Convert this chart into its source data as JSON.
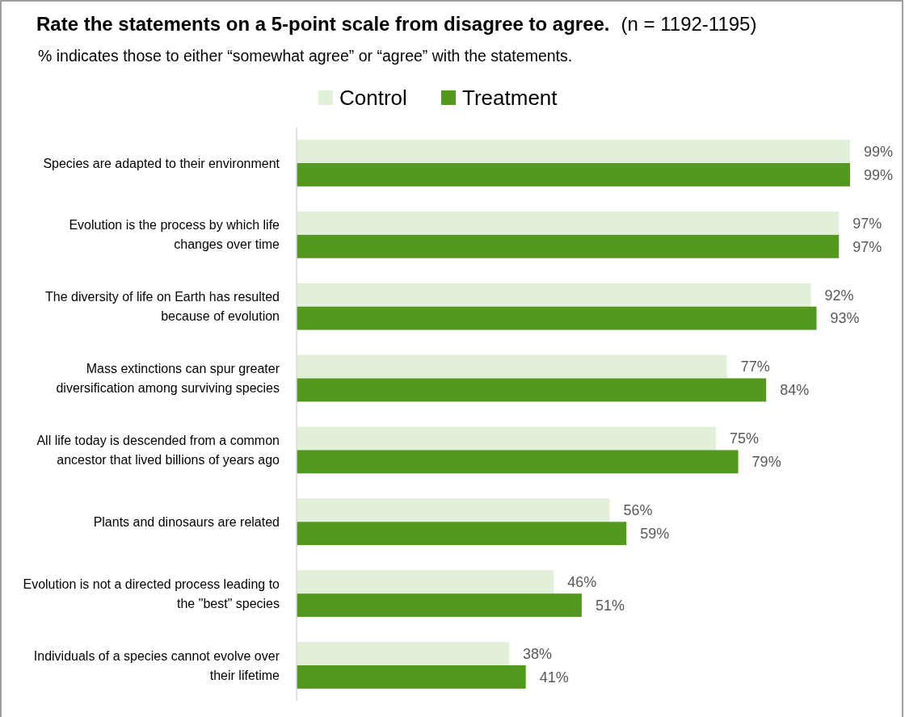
{
  "chart_data": {
    "type": "bar",
    "orientation": "horizontal",
    "title": "Rate the statements on a 5-point scale from disagree to agree.",
    "subtitle": "% indicates those to either “somewhat agree” or “agree” with the statements.",
    "annotations": [
      "(n = 1192-1195)"
    ],
    "categories": [
      "Species are adapted to their environment",
      "Evolution is the process by which life changes over time",
      "The diversity of life on Earth has resulted because of evolution",
      "Mass extinctions can spur greater diversification among surviving species",
      "All life today is descended from a common ancestor that lived billions of years ago",
      "Plants and dinosaurs are related",
      "Evolution is not a directed process leading to the \"best\" species",
      "Individuals of a species cannot evolve over their lifetime"
    ],
    "series": [
      {
        "name": "Control",
        "color": "#e2efd9",
        "values": [
          99,
          97,
          92,
          77,
          75,
          56,
          46,
          38
        ],
        "value_labels": [
          "99%",
          "97%",
          "92%",
          "77%",
          "75%",
          "56%",
          "46%",
          "38%"
        ]
      },
      {
        "name": "Treatment",
        "color": "#55981f",
        "values": [
          99,
          97,
          93,
          84,
          79,
          59,
          51,
          41
        ],
        "value_labels": [
          "99%",
          "97%",
          "93%",
          "84%",
          "79%",
          "59%",
          "51%",
          "41%"
        ]
      }
    ],
    "tick_labels": "y",
    "legend": "top"
  }
}
